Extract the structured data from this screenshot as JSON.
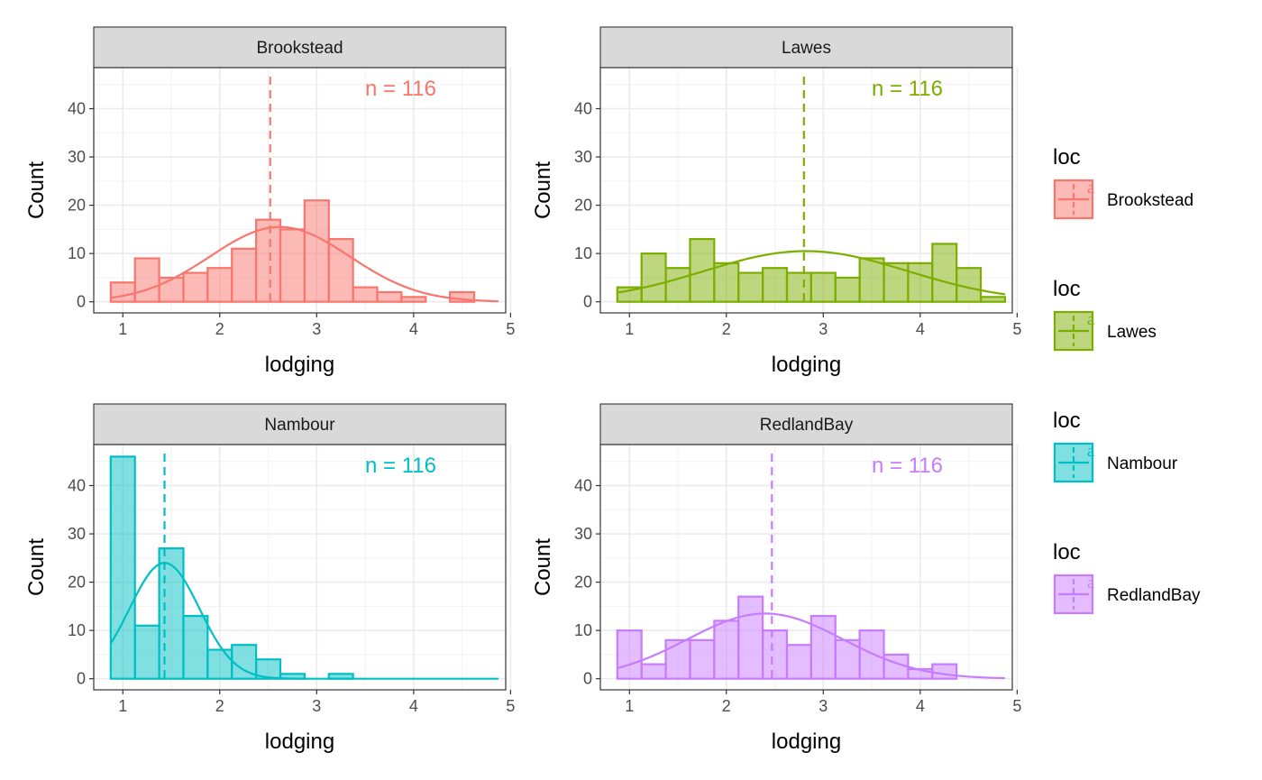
{
  "chart_data": [
    {
      "type": "histogram",
      "panel": "Brookstead",
      "color": "#F8766D",
      "fill": "#F8766D",
      "xlabel": "lodging",
      "ylabel": "Count",
      "xlim": [
        0.7,
        4.95
      ],
      "ylim": [
        -2.3,
        48.5
      ],
      "xticks": [
        1,
        2,
        3,
        4,
        5
      ],
      "yticks": [
        0,
        10,
        20,
        30,
        40
      ],
      "bin_start": 0.875,
      "bin_width": 0.25,
      "counts": [
        4,
        9,
        5,
        6,
        7,
        11,
        17,
        15,
        21,
        13,
        3,
        2,
        1,
        0,
        2,
        0
      ],
      "mean_line": 2.52,
      "curve": {
        "peak": 15.5,
        "mean": 2.62,
        "sd": 0.72,
        "x_range": [
          0.875,
          4.875
        ]
      },
      "annotation": "n =  116"
    },
    {
      "type": "histogram",
      "panel": "Lawes",
      "color": "#7CAE00",
      "fill": "#7CAE00",
      "xlabel": "lodging",
      "ylabel": "Count",
      "xlim": [
        0.7,
        4.95
      ],
      "ylim": [
        -2.3,
        48.5
      ],
      "xticks": [
        1,
        2,
        3,
        4,
        5
      ],
      "yticks": [
        0,
        10,
        20,
        30,
        40
      ],
      "bin_start": 0.875,
      "bin_width": 0.25,
      "counts": [
        3,
        10,
        7,
        13,
        8,
        6,
        7,
        6,
        6,
        5,
        9,
        8,
        8,
        12,
        7,
        1
      ],
      "mean_line": 2.8,
      "curve": {
        "peak": 10.5,
        "mean": 2.82,
        "sd": 1.05,
        "x_range": [
          0.875,
          4.875
        ]
      },
      "annotation": "n =  116"
    },
    {
      "type": "histogram",
      "panel": "Nambour",
      "color": "#00BFC4",
      "fill": "#00BFC4",
      "xlabel": "lodging",
      "ylabel": "Count",
      "xlim": [
        0.7,
        4.95
      ],
      "ylim": [
        -2.3,
        48.5
      ],
      "xticks": [
        1,
        2,
        3,
        4,
        5
      ],
      "yticks": [
        0,
        10,
        20,
        30,
        40
      ],
      "bin_start": 0.875,
      "bin_width": 0.25,
      "counts": [
        46,
        11,
        27,
        13,
        6,
        7,
        4,
        1,
        0,
        1,
        0,
        0,
        0,
        0,
        0,
        0
      ],
      "mean_line": 1.43,
      "curve": {
        "peak": 24,
        "mean": 1.43,
        "sd": 0.36,
        "x_range": [
          0.875,
          4.875
        ]
      },
      "annotation": "n =  116"
    },
    {
      "type": "histogram",
      "panel": "RedlandBay",
      "color": "#C77CFF",
      "fill": "#C77CFF",
      "xlabel": "lodging",
      "ylabel": "Count",
      "xlim": [
        0.7,
        4.95
      ],
      "ylim": [
        -2.3,
        48.5
      ],
      "xticks": [
        1,
        2,
        3,
        4,
        5
      ],
      "yticks": [
        0,
        10,
        20,
        30,
        40
      ],
      "bin_start": 0.875,
      "bin_width": 0.25,
      "counts": [
        10,
        3,
        8,
        8,
        12,
        17,
        10,
        7,
        13,
        8,
        10,
        5,
        2,
        3,
        0,
        0
      ],
      "mean_line": 2.47,
      "curve": {
        "peak": 13.5,
        "mean": 2.4,
        "sd": 0.8,
        "x_range": [
          0.875,
          4.875
        ]
      },
      "annotation": "n =  116"
    }
  ],
  "legend": [
    {
      "title": "loc",
      "label": "Brookstead",
      "color": "#F8766D",
      "key_text": "a"
    },
    {
      "title": "loc",
      "label": "Lawes",
      "color": "#7CAE00",
      "key_text": "a"
    },
    {
      "title": "loc",
      "label": "Nambour",
      "color": "#00BFC4",
      "key_text": "a"
    },
    {
      "title": "loc",
      "label": "RedlandBay",
      "color": "#C77CFF",
      "key_text": "a"
    }
  ]
}
